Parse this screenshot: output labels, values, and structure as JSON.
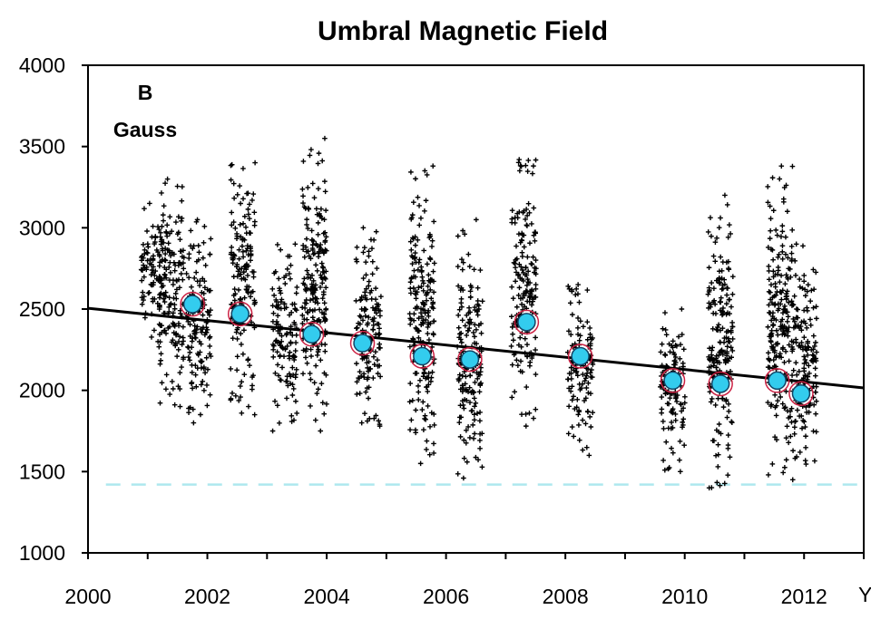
{
  "chart_data": {
    "type": "scatter",
    "title": "Umbral Magnetic Field",
    "xlabel": "Y",
    "ylabel_lines": [
      "B",
      "Gauss"
    ],
    "xlim": [
      2000,
      2013
    ],
    "ylim": [
      1000,
      4000
    ],
    "x_ticks": [
      "2000",
      "2002",
      "2004",
      "2006",
      "2008",
      "2010",
      "2012"
    ],
    "y_ticks": [
      "1000",
      "1500",
      "2000",
      "2500",
      "3000",
      "3500",
      "4000"
    ],
    "grid": false,
    "colors": {
      "points": "#000000",
      "means": "#33ccee",
      "mean_ring": "#cc2244",
      "trend": "#000000",
      "threshold": "#aee8ee"
    },
    "trend_line": {
      "x": [
        2000,
        2013
      ],
      "y": [
        2505,
        2015
      ]
    },
    "threshold_line": {
      "y": 1420,
      "x": [
        2000.3,
        2013
      ]
    },
    "series": [
      {
        "role": "individual measurements",
        "marker": "plus",
        "clusters": [
          {
            "x": 2001.1,
            "y_range": [
              2300,
              3150
            ]
          },
          {
            "x": 2001.4,
            "y_range": [
              1900,
              3300
            ]
          },
          {
            "x": 2001.85,
            "y_range": [
              1800,
              3050
            ]
          },
          {
            "x": 2002.6,
            "y_range": [
              1850,
              3400
            ]
          },
          {
            "x": 2003.3,
            "y_range": [
              1750,
              2900
            ]
          },
          {
            "x": 2003.8,
            "y_range": [
              1750,
              3550
            ]
          },
          {
            "x": 2004.7,
            "y_range": [
              1780,
              3000
            ]
          },
          {
            "x": 2005.6,
            "y_range": [
              1550,
              3380
            ]
          },
          {
            "x": 2006.4,
            "y_range": [
              1460,
              3050
            ]
          },
          {
            "x": 2007.3,
            "y_range": [
              1780,
              3420
            ]
          },
          {
            "x": 2008.25,
            "y_range": [
              1600,
              2650
            ]
          },
          {
            "x": 2009.8,
            "y_range": [
              1500,
              2500
            ]
          },
          {
            "x": 2010.6,
            "y_range": [
              1400,
              3200
            ]
          },
          {
            "x": 2011.6,
            "y_range": [
              1480,
              3380
            ]
          },
          {
            "x": 2012.0,
            "y_range": [
              1450,
              2900
            ]
          }
        ]
      },
      {
        "role": "mean values",
        "marker": "circle",
        "x": [
          2001.75,
          2002.55,
          2003.75,
          2004.6,
          2005.6,
          2006.4,
          2007.35,
          2008.25,
          2009.8,
          2010.6,
          2011.55,
          2011.95
        ],
        "y": [
          2530,
          2470,
          2345,
          2290,
          2210,
          2190,
          2420,
          2210,
          2060,
          2040,
          2060,
          1980
        ]
      }
    ]
  }
}
